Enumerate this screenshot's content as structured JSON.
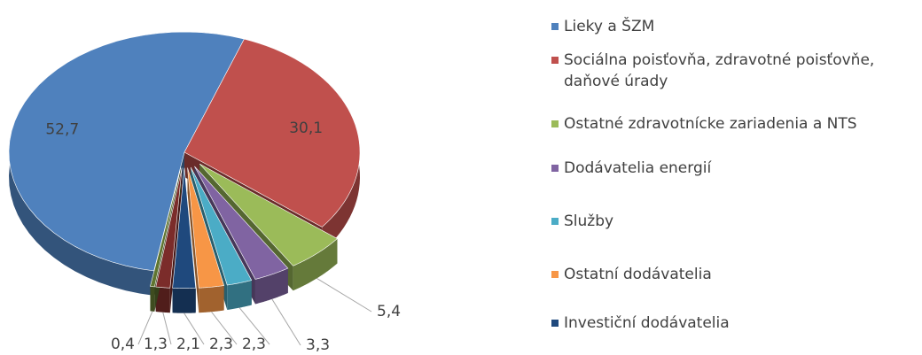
{
  "chart_data": {
    "type": "pie",
    "categories": [
      "Lieky a ŠZM",
      "Sociálna poisťovňa, zdravotné poisťovňe, daňové úrady",
      "Ostatné zdravotnícke zariadenia a NTS",
      "Dodávatelia energií",
      "Služby",
      "Ostatní dodávatelia",
      "Investiční dodávatelia",
      null,
      null
    ],
    "values": [
      52.7,
      30.1,
      5.4,
      3.3,
      2.3,
      2.3,
      2.1,
      1.3,
      0.4
    ],
    "value_labels": [
      "52,7",
      "30,1",
      "5,4",
      "3,3",
      "2,3",
      "2,3",
      "2,1",
      "1,3",
      "0,4"
    ],
    "colors": [
      "#4f81bd",
      "#c0504d",
      "#9bbb59",
      "#8064a2",
      "#4bacc6",
      "#f79646",
      "#1f497d",
      "#7b2c2a",
      "#5f7530"
    ],
    "legend": "right"
  }
}
